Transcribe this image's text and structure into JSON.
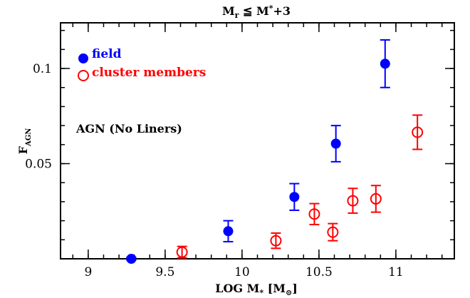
{
  "chart_data": {
    "type": "scatter",
    "title": "M_r ≦ M*+3",
    "title_parts": {
      "m": "M",
      "r": "r",
      "rest": " ≦ M",
      "star": "*",
      "plus": "+3"
    },
    "xlabel": "LOG M* [M⊙]",
    "xlabel_parts": {
      "pre": "LOG M",
      "star": "*",
      "mid": " [M",
      "sun": "⊙",
      "post": "]"
    },
    "ylabel": "F_AGN",
    "ylabel_parts": {
      "f": "F",
      "sub": "AGN"
    },
    "xlim": [
      8.82,
      11.38
    ],
    "ylim": [
      0.0,
      0.124
    ],
    "x_ticks": [
      {
        "value": 9,
        "label": "9"
      },
      {
        "value": 9.5,
        "label": "9.5"
      },
      {
        "value": 10,
        "label": "10"
      },
      {
        "value": 10.5,
        "label": "10.5"
      },
      {
        "value": 11,
        "label": "11"
      }
    ],
    "y_ticks": [
      {
        "value": 0.05,
        "label": "0.05"
      },
      {
        "value": 0.1,
        "label": "0.1"
      }
    ],
    "x_minor_step": 0.1,
    "y_minor_step": 0.01,
    "annotation": "AGN (No Liners)",
    "legend": {
      "placement": "top-left"
    },
    "series": [
      {
        "name": "field",
        "color": "#0000ff",
        "marker": "filled-circle",
        "points": [
          {
            "x": 9.28,
            "y": 0.0,
            "yerr": 0.0008
          },
          {
            "x": 9.91,
            "y": 0.0145,
            "yerr": 0.0055
          },
          {
            "x": 10.34,
            "y": 0.0325,
            "yerr": 0.007
          },
          {
            "x": 10.61,
            "y": 0.0605,
            "yerr": 0.0095
          },
          {
            "x": 10.93,
            "y": 0.1025,
            "yerr": 0.0125
          }
        ]
      },
      {
        "name": "cluster members",
        "color": "#ff0000",
        "marker": "open-circle-cross",
        "points": [
          {
            "x": 9.61,
            "y": 0.0035,
            "yerr": 0.003
          },
          {
            "x": 10.22,
            "y": 0.0095,
            "yerr": 0.004
          },
          {
            "x": 10.47,
            "y": 0.0235,
            "yerr": 0.0055
          },
          {
            "x": 10.59,
            "y": 0.014,
            "yerr": 0.0045
          },
          {
            "x": 10.72,
            "y": 0.0305,
            "yerr": 0.0065
          },
          {
            "x": 10.87,
            "y": 0.0315,
            "yerr": 0.007
          },
          {
            "x": 11.14,
            "y": 0.0665,
            "yerr": 0.009
          }
        ]
      }
    ]
  }
}
